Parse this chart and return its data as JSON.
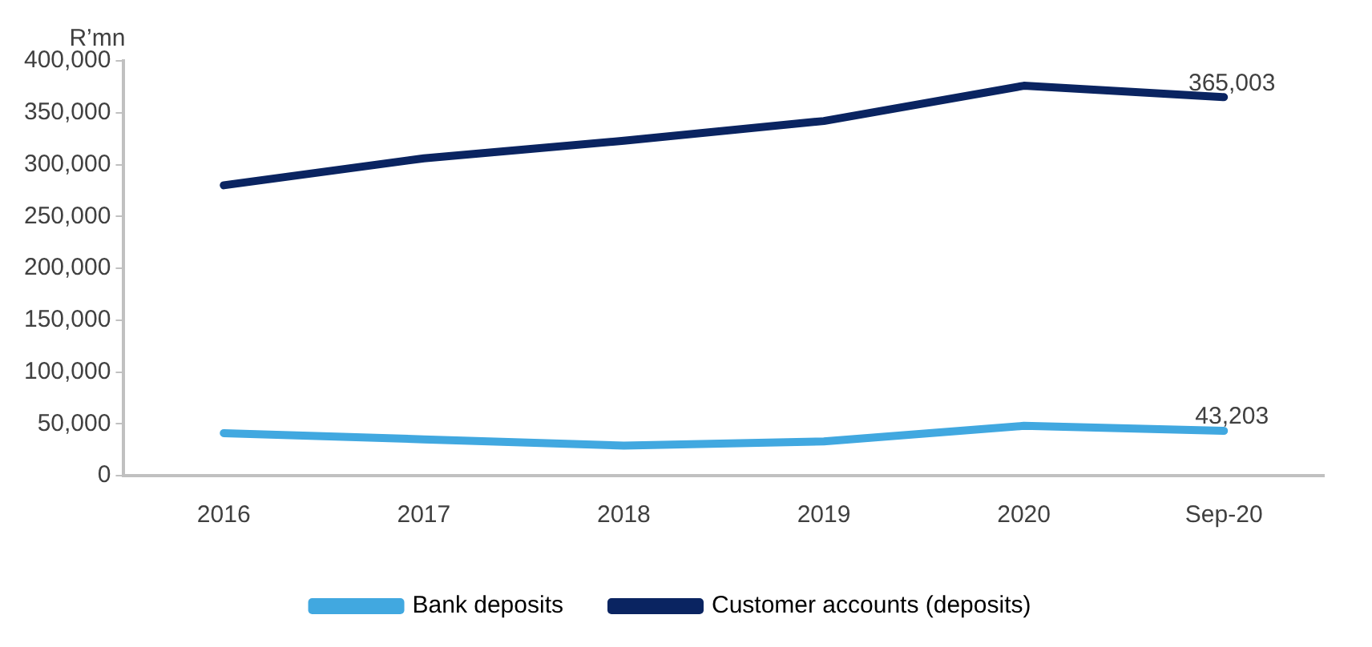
{
  "chart_data": {
    "type": "line",
    "ylabel": "R’mn",
    "categories": [
      "2016",
      "2017",
      "2018",
      "2019",
      "2020",
      "Sep-20"
    ],
    "series": [
      {
        "name": "Bank deposits",
        "color": "#41a8e0",
        "values": [
          41000,
          35000,
          29000,
          33000,
          48000,
          43203
        ],
        "value_labels": [
          null,
          null,
          null,
          null,
          null,
          "43,203"
        ]
      },
      {
        "name": "Customer accounts (deposits)",
        "color": "#0a2461",
        "values": [
          280000,
          306000,
          323000,
          342000,
          376000,
          365003
        ],
        "value_labels": [
          null,
          null,
          null,
          null,
          null,
          "365,003"
        ]
      }
    ],
    "ylim": [
      0,
      400000
    ],
    "yticks": [
      0,
      {
        "value": 50000,
        "label": "50,000"
      },
      {
        "value": 100000,
        "label": "100,000"
      },
      {
        "value": 150000,
        "label": "150,000"
      },
      {
        "value": 200000,
        "label": "200,000"
      },
      {
        "value": 250000,
        "label": "250,000"
      },
      {
        "value": 300000,
        "label": "300,000"
      },
      {
        "value": 350000,
        "label": "350,000"
      },
      {
        "value": 400000,
        "label": "400,000"
      }
    ],
    "grid": false,
    "legend": "bottom",
    "marker": "none"
  }
}
